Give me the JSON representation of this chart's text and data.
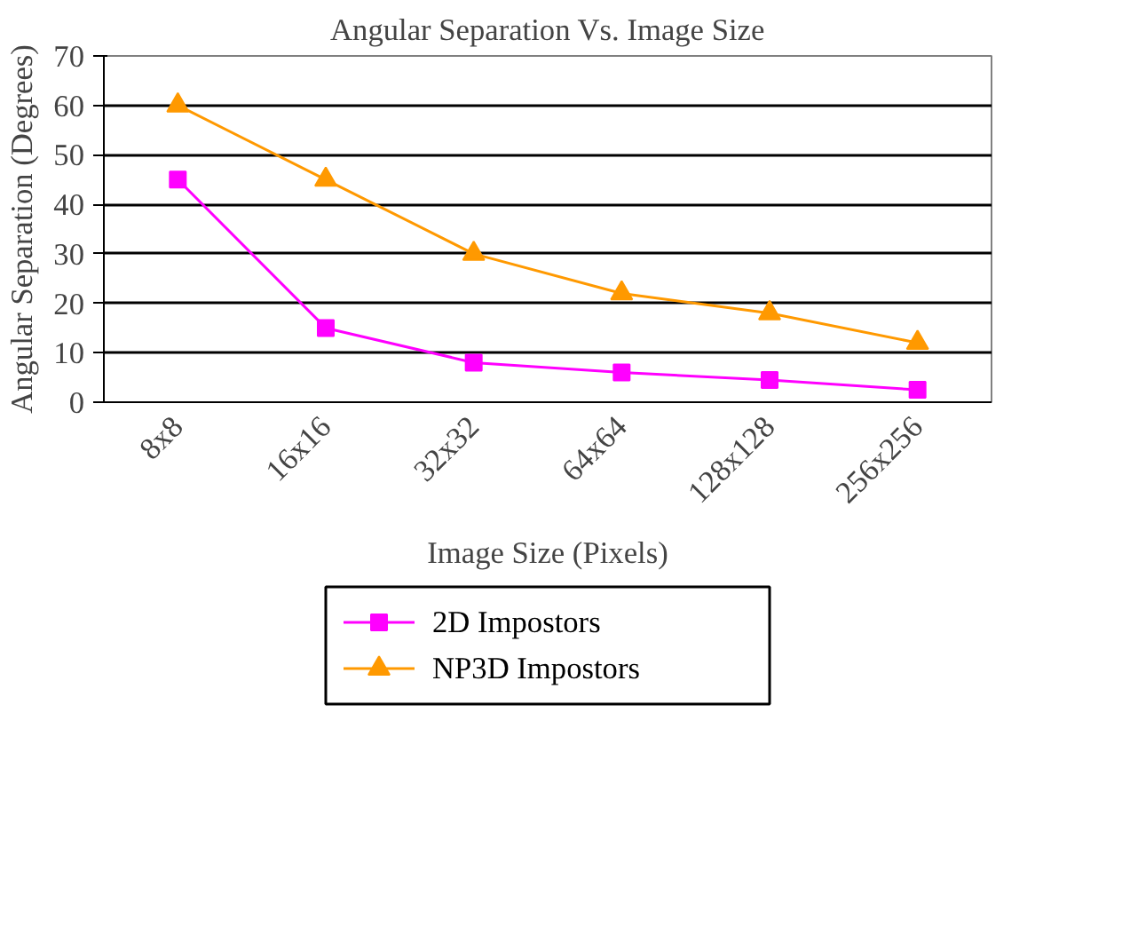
{
  "chart_data": {
    "type": "line",
    "title": "Angular Separation Vs. Image Size",
    "xlabel": "Image Size (Pixels)",
    "ylabel": "Angular Separation (Degrees)",
    "categories": [
      "8x8",
      "16x16",
      "32x32",
      "64x64",
      "128x128",
      "256x256"
    ],
    "ylim": [
      0,
      70
    ],
    "yticks": [
      0,
      10,
      20,
      30,
      40,
      50,
      60,
      70
    ],
    "grid": "y",
    "legend": "bottom",
    "line_style": "solid",
    "series": [
      {
        "name": "2D Impostors",
        "color": "#ff00ff",
        "marker": "square",
        "values": [
          45,
          15,
          8,
          6,
          4.5,
          2.5
        ]
      },
      {
        "name": "NP3D Impostors",
        "color": "#ff9900",
        "marker": "triangle",
        "values": [
          60,
          45,
          30,
          22,
          18,
          12
        ]
      }
    ]
  }
}
